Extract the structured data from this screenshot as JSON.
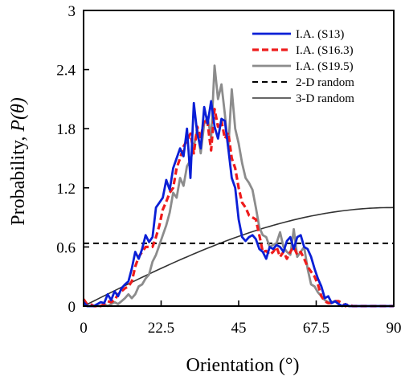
{
  "chart_data": {
    "type": "line",
    "xlabel": "Orientation (°)",
    "ylabel_main": "Probability, ",
    "ylabel_symbol": "P(θ)",
    "xlim": [
      0,
      90
    ],
    "ylim": [
      0,
      3
    ],
    "xticks": [
      "0",
      "22.5",
      "45",
      "67.5",
      "90"
    ],
    "xtick_values": [
      0,
      22.5,
      45,
      67.5,
      90
    ],
    "yticks": [
      "0",
      "0.6",
      "1.2",
      "1.8",
      "2.4",
      "3"
    ],
    "ytick_values": [
      0,
      0.6,
      1.2,
      1.8,
      2.4,
      3
    ],
    "grid": false,
    "legend_position": "top-right",
    "series": [
      {
        "name": "I.A. (S13)",
        "color": "#0a1fd6",
        "style": "solid",
        "x": [
          0,
          1,
          2,
          3,
          4,
          5,
          6,
          7,
          8,
          9,
          10,
          11,
          12,
          13,
          14,
          15,
          16,
          17,
          18,
          19,
          20,
          21,
          22,
          23,
          24,
          25,
          26,
          27,
          28,
          29,
          30,
          31,
          32,
          33,
          34,
          35,
          36,
          37,
          38,
          39,
          40,
          41,
          42,
          43,
          44,
          45,
          46,
          47,
          48,
          49,
          50,
          51,
          52,
          53,
          54,
          55,
          56,
          57,
          58,
          59,
          60,
          61,
          62,
          63,
          64,
          65,
          66,
          67,
          68,
          69,
          70,
          71,
          72,
          73,
          74,
          75,
          76,
          77,
          78,
          79,
          80,
          81,
          82,
          83,
          84,
          85,
          86,
          87,
          88,
          89,
          90
        ],
        "y": [
          0.04,
          0.0,
          0.0,
          0.0,
          0.02,
          0.04,
          0.03,
          0.12,
          0.06,
          0.15,
          0.1,
          0.18,
          0.22,
          0.25,
          0.38,
          0.55,
          0.48,
          0.58,
          0.72,
          0.65,
          0.7,
          1.0,
          1.05,
          1.1,
          1.28,
          1.18,
          1.4,
          1.5,
          1.6,
          1.52,
          1.8,
          1.3,
          2.06,
          1.75,
          1.6,
          2.02,
          1.85,
          2.08,
          1.82,
          1.7,
          1.9,
          1.88,
          1.6,
          1.3,
          1.2,
          0.88,
          0.7,
          0.66,
          0.7,
          0.72,
          0.68,
          0.58,
          0.55,
          0.48,
          0.6,
          0.58,
          0.62,
          0.6,
          0.55,
          0.66,
          0.7,
          0.58,
          0.7,
          0.72,
          0.6,
          0.58,
          0.5,
          0.38,
          0.28,
          0.2,
          0.08,
          0.1,
          0.03,
          0.05,
          0.02,
          0.0,
          0.02,
          0.0,
          0.0,
          0.0,
          0.0,
          0.0,
          0.0,
          0.0,
          0.0,
          0.0,
          0.0,
          0.0,
          0.0,
          0.0,
          0.0
        ]
      },
      {
        "name": "I.A. (S16.3)",
        "color": "#ee1c1c",
        "style": "dashed",
        "x": [
          0,
          1,
          2,
          3,
          4,
          5,
          6,
          7,
          8,
          9,
          10,
          11,
          12,
          13,
          14,
          15,
          16,
          17,
          18,
          19,
          20,
          21,
          22,
          23,
          24,
          25,
          26,
          27,
          28,
          29,
          30,
          31,
          32,
          33,
          34,
          35,
          36,
          37,
          38,
          39,
          40,
          41,
          42,
          43,
          44,
          45,
          46,
          47,
          48,
          49,
          50,
          51,
          52,
          53,
          54,
          55,
          56,
          57,
          58,
          59,
          60,
          61,
          62,
          63,
          64,
          65,
          66,
          67,
          68,
          69,
          70,
          71,
          72,
          73,
          74,
          75,
          76,
          77,
          78,
          79,
          80,
          81,
          82,
          83,
          84,
          85,
          86,
          87,
          88,
          89,
          90
        ],
        "y": [
          0.07,
          0.02,
          0.02,
          0.0,
          0.0,
          0.0,
          0.02,
          0.05,
          0.04,
          0.06,
          0.12,
          0.15,
          0.18,
          0.2,
          0.25,
          0.4,
          0.5,
          0.55,
          0.6,
          0.6,
          0.6,
          0.7,
          0.82,
          0.98,
          1.06,
          1.15,
          1.2,
          1.4,
          1.5,
          1.62,
          1.68,
          1.75,
          1.55,
          1.82,
          1.7,
          1.9,
          1.85,
          1.58,
          2.0,
          1.82,
          1.88,
          1.7,
          1.76,
          1.5,
          1.4,
          1.2,
          1.05,
          1.0,
          0.92,
          0.9,
          0.88,
          0.72,
          0.55,
          0.56,
          0.52,
          0.55,
          0.6,
          0.5,
          0.55,
          0.48,
          0.55,
          0.6,
          0.52,
          0.55,
          0.48,
          0.4,
          0.35,
          0.3,
          0.22,
          0.1,
          0.05,
          0.03,
          0.03,
          0.05,
          0.05,
          0.03,
          0.0,
          0.02,
          0.0,
          0.0,
          0.0,
          0.0,
          0.0,
          0.0,
          0.0,
          0.0,
          0.0,
          0.0,
          0.0,
          0.0,
          0.0
        ]
      },
      {
        "name": "I.A. (S19.5)",
        "color": "#8c8c8c",
        "style": "solid",
        "x": [
          0,
          1,
          2,
          3,
          4,
          5,
          6,
          7,
          8,
          9,
          10,
          11,
          12,
          13,
          14,
          15,
          16,
          17,
          18,
          19,
          20,
          21,
          22,
          23,
          24,
          25,
          26,
          27,
          28,
          29,
          30,
          31,
          32,
          33,
          34,
          35,
          36,
          37,
          38,
          39,
          40,
          41,
          42,
          43,
          44,
          45,
          46,
          47,
          48,
          49,
          50,
          51,
          52,
          53,
          54,
          55,
          56,
          57,
          58,
          59,
          60,
          61,
          62,
          63,
          64,
          65,
          66,
          67,
          68,
          69,
          70,
          71,
          72,
          73,
          74,
          75,
          76,
          77,
          78,
          79,
          80,
          81,
          82,
          83,
          84,
          85,
          86,
          87,
          88,
          89,
          90
        ],
        "y": [
          0.02,
          0.0,
          0.0,
          0.0,
          0.0,
          0.0,
          0.02,
          0.0,
          0.02,
          0.04,
          0.02,
          0.05,
          0.08,
          0.12,
          0.08,
          0.12,
          0.2,
          0.22,
          0.28,
          0.32,
          0.45,
          0.52,
          0.62,
          0.72,
          0.82,
          0.95,
          1.15,
          1.1,
          1.3,
          1.22,
          1.42,
          1.48,
          1.62,
          1.8,
          1.55,
          1.85,
          1.92,
          1.7,
          2.44,
          2.1,
          2.25,
          1.95,
          1.6,
          2.2,
          1.8,
          1.65,
          1.45,
          1.3,
          1.25,
          1.18,
          1.0,
          0.8,
          0.72,
          0.7,
          0.6,
          0.62,
          0.64,
          0.75,
          0.6,
          0.55,
          0.52,
          0.78,
          0.5,
          0.55,
          0.6,
          0.38,
          0.22,
          0.2,
          0.14,
          0.1,
          0.06,
          0.04,
          0.04,
          0.05,
          0.02,
          0.0,
          0.02,
          0.0,
          0.0,
          0.0,
          0.0,
          0.0,
          0.0,
          0.0,
          0.0,
          0.0,
          0.0,
          0.0,
          0.0,
          0.0,
          0.0
        ]
      },
      {
        "name": "2-D random",
        "color": "#000000",
        "style": "dashed",
        "x": [
          0,
          90
        ],
        "y": [
          0.6366,
          0.6366
        ]
      },
      {
        "name": "3-D random",
        "color": "#333333",
        "style": "solid",
        "function": "sin",
        "x": [
          0,
          90
        ],
        "y": [
          0,
          1
        ]
      }
    ]
  }
}
